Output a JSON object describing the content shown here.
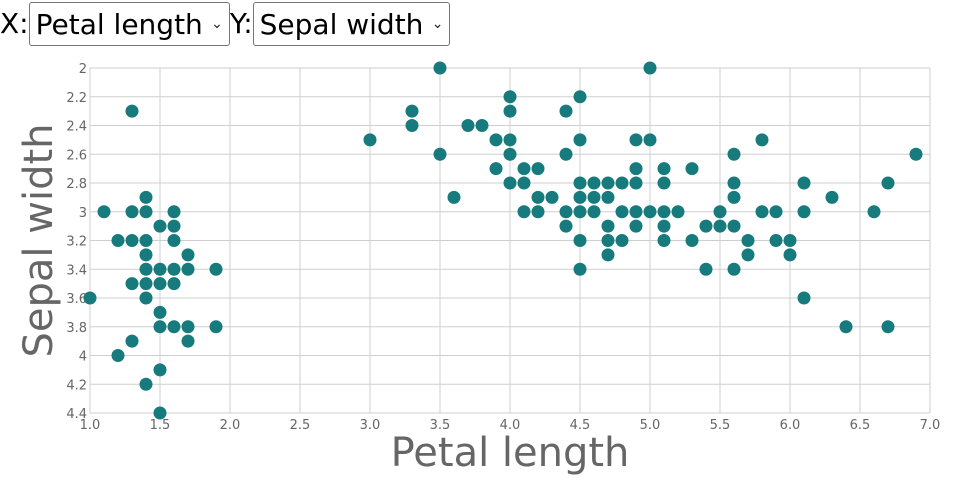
{
  "controls": {
    "x_prefix": "X:",
    "x_selected": "Petal length",
    "y_prefix": "Y:",
    "y_selected": "Sepal width"
  },
  "colors": {
    "point": "#177b7e",
    "grid": "#cfcfcf",
    "axis_text": "#666666"
  },
  "chart_data": {
    "type": "scatter",
    "xlabel": "Petal length",
    "ylabel": "Sepal width",
    "xlim": [
      1.0,
      7.0
    ],
    "ylim": [
      2.0,
      4.4
    ],
    "y_inverted": true,
    "grid": true,
    "x_ticks": [
      "1.0",
      "1.5",
      "2.0",
      "2.5",
      "3.0",
      "3.5",
      "4.0",
      "4.5",
      "5.0",
      "5.5",
      "6.0",
      "6.5",
      "7.0"
    ],
    "y_ticks": [
      "2",
      "2.2",
      "2.4",
      "2.6",
      "2.8",
      "3",
      "3.2",
      "3.4",
      "3.6",
      "3.8",
      "4",
      "4.2",
      "4.4"
    ],
    "points": [
      [
        1.0,
        3.6
      ],
      [
        1.1,
        3.0
      ],
      [
        1.2,
        3.2
      ],
      [
        1.2,
        4.0
      ],
      [
        1.3,
        2.3
      ],
      [
        1.3,
        3.0
      ],
      [
        1.3,
        3.2
      ],
      [
        1.3,
        3.5
      ],
      [
        1.3,
        3.9
      ],
      [
        1.4,
        2.9
      ],
      [
        1.4,
        3.0
      ],
      [
        1.4,
        3.2
      ],
      [
        1.4,
        3.3
      ],
      [
        1.4,
        3.4
      ],
      [
        1.4,
        3.5
      ],
      [
        1.4,
        3.6
      ],
      [
        1.4,
        4.2
      ],
      [
        1.5,
        3.1
      ],
      [
        1.5,
        3.4
      ],
      [
        1.5,
        3.5
      ],
      [
        1.5,
        3.7
      ],
      [
        1.5,
        3.8
      ],
      [
        1.5,
        4.1
      ],
      [
        1.5,
        4.4
      ],
      [
        1.6,
        3.0
      ],
      [
        1.6,
        3.1
      ],
      [
        1.6,
        3.2
      ],
      [
        1.6,
        3.4
      ],
      [
        1.6,
        3.5
      ],
      [
        1.6,
        3.8
      ],
      [
        1.7,
        3.3
      ],
      [
        1.7,
        3.4
      ],
      [
        1.7,
        3.8
      ],
      [
        1.7,
        3.9
      ],
      [
        1.9,
        3.4
      ],
      [
        1.9,
        3.8
      ],
      [
        3.0,
        2.5
      ],
      [
        3.3,
        2.3
      ],
      [
        3.3,
        2.4
      ],
      [
        3.5,
        2.0
      ],
      [
        3.5,
        2.6
      ],
      [
        3.6,
        2.9
      ],
      [
        3.7,
        2.4
      ],
      [
        3.8,
        2.4
      ],
      [
        3.9,
        2.5
      ],
      [
        3.9,
        2.7
      ],
      [
        4.0,
        2.2
      ],
      [
        4.0,
        2.3
      ],
      [
        4.0,
        2.5
      ],
      [
        4.0,
        2.6
      ],
      [
        4.0,
        2.8
      ],
      [
        4.1,
        2.7
      ],
      [
        4.1,
        2.8
      ],
      [
        4.1,
        3.0
      ],
      [
        4.2,
        2.7
      ],
      [
        4.2,
        2.9
      ],
      [
        4.2,
        3.0
      ],
      [
        4.3,
        2.9
      ],
      [
        4.4,
        2.3
      ],
      [
        4.4,
        2.6
      ],
      [
        4.4,
        3.0
      ],
      [
        4.4,
        3.1
      ],
      [
        4.5,
        2.2
      ],
      [
        4.5,
        2.5
      ],
      [
        4.5,
        2.8
      ],
      [
        4.5,
        2.9
      ],
      [
        4.5,
        3.0
      ],
      [
        4.5,
        3.2
      ],
      [
        4.5,
        3.4
      ],
      [
        4.6,
        2.8
      ],
      [
        4.6,
        2.9
      ],
      [
        4.6,
        3.0
      ],
      [
        4.7,
        2.8
      ],
      [
        4.7,
        2.9
      ],
      [
        4.7,
        3.1
      ],
      [
        4.7,
        3.2
      ],
      [
        4.7,
        3.3
      ],
      [
        4.8,
        2.8
      ],
      [
        4.8,
        3.0
      ],
      [
        4.8,
        3.2
      ],
      [
        4.9,
        2.5
      ],
      [
        4.9,
        2.7
      ],
      [
        4.9,
        2.8
      ],
      [
        4.9,
        3.0
      ],
      [
        4.9,
        3.1
      ],
      [
        5.0,
        2.0
      ],
      [
        5.0,
        2.5
      ],
      [
        5.0,
        3.0
      ],
      [
        5.1,
        2.7
      ],
      [
        5.1,
        2.8
      ],
      [
        5.1,
        3.0
      ],
      [
        5.1,
        3.1
      ],
      [
        5.1,
        3.2
      ],
      [
        5.2,
        3.0
      ],
      [
        5.3,
        2.7
      ],
      [
        5.3,
        3.2
      ],
      [
        5.4,
        3.1
      ],
      [
        5.4,
        3.4
      ],
      [
        5.5,
        3.0
      ],
      [
        5.5,
        3.1
      ],
      [
        5.6,
        2.6
      ],
      [
        5.6,
        2.8
      ],
      [
        5.6,
        2.9
      ],
      [
        5.6,
        3.1
      ],
      [
        5.6,
        3.4
      ],
      [
        5.7,
        3.2
      ],
      [
        5.7,
        3.3
      ],
      [
        5.8,
        2.5
      ],
      [
        5.8,
        3.0
      ],
      [
        5.9,
        3.0
      ],
      [
        5.9,
        3.2
      ],
      [
        6.0,
        3.2
      ],
      [
        6.0,
        3.3
      ],
      [
        6.1,
        2.8
      ],
      [
        6.1,
        3.0
      ],
      [
        6.1,
        3.6
      ],
      [
        6.3,
        2.9
      ],
      [
        6.4,
        3.8
      ],
      [
        6.6,
        3.0
      ],
      [
        6.7,
        2.8
      ],
      [
        6.7,
        3.8
      ],
      [
        6.9,
        2.6
      ]
    ]
  }
}
